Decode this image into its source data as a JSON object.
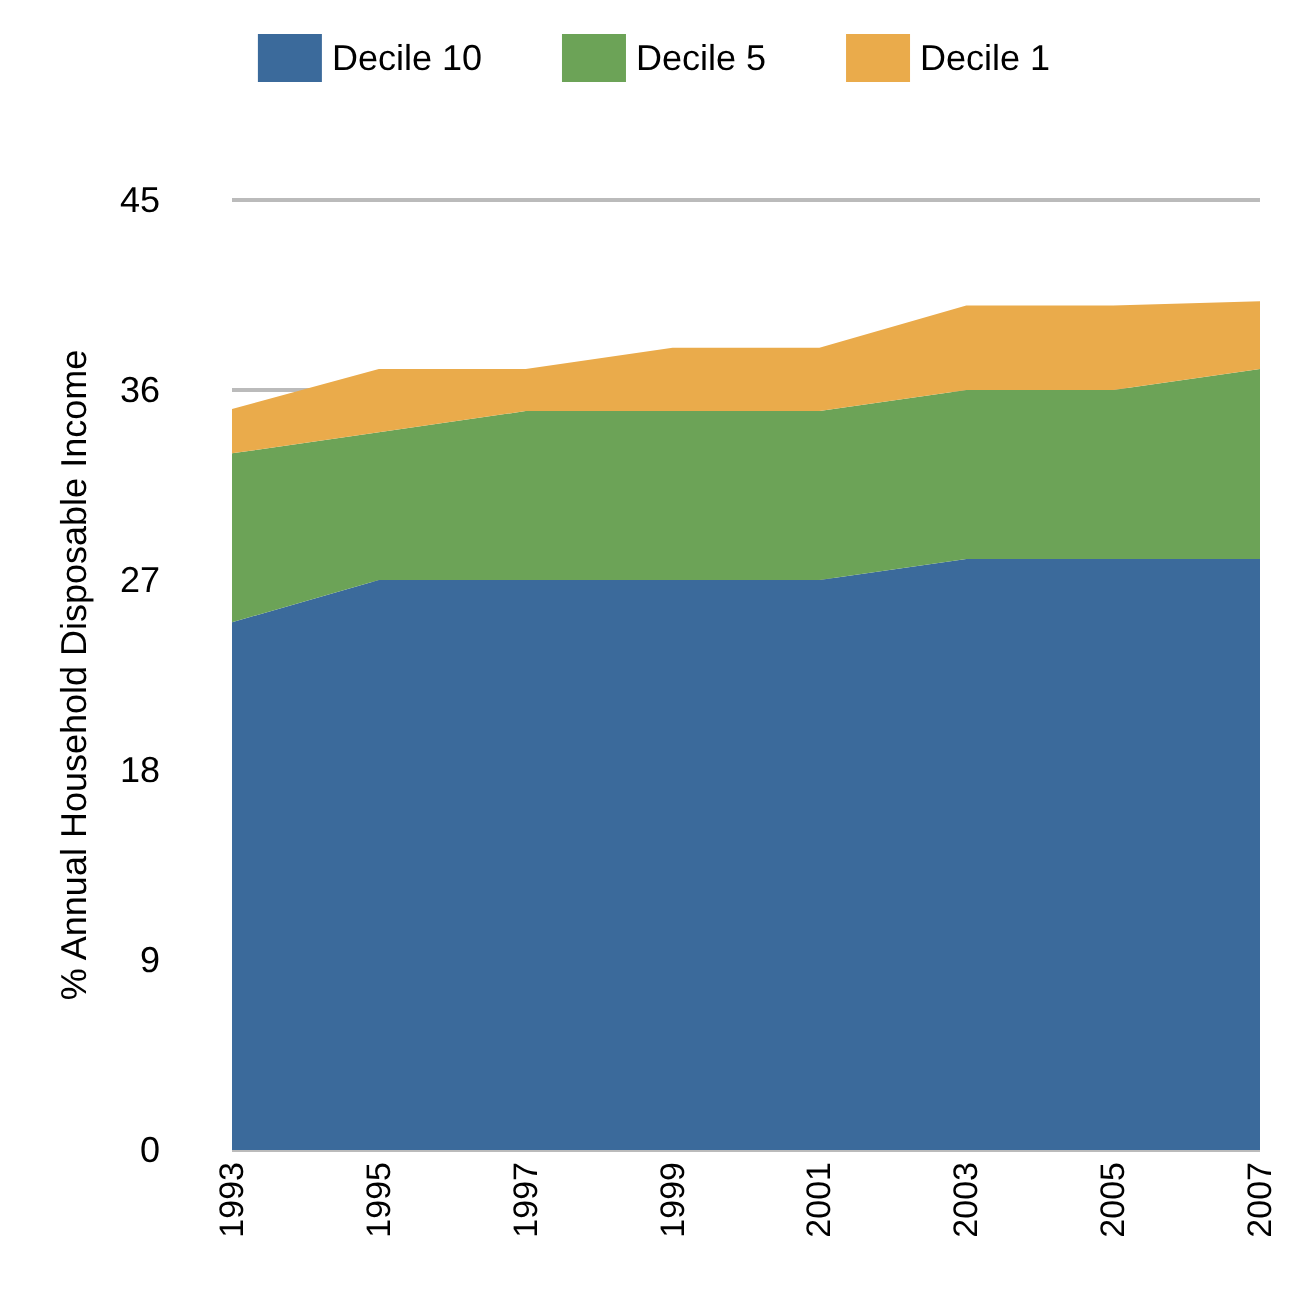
{
  "chart_data": {
    "type": "area",
    "ylabel": "% Annual Household Disposable Income",
    "categories": [
      "1993",
      "1995",
      "1997",
      "1999",
      "2001",
      "2003",
      "2005",
      "2007"
    ],
    "stacked": true,
    "series": [
      {
        "name": "Decile 10",
        "color": "#3b6a9b",
        "values": [
          25,
          27,
          27,
          27,
          27,
          28,
          28,
          28
        ]
      },
      {
        "name": "Decile 5",
        "color": "#6ca357",
        "values": [
          8,
          7,
          8,
          8,
          8,
          8,
          8,
          9
        ]
      },
      {
        "name": "Decile 1",
        "color": "#eaab4b",
        "values": [
          2.1,
          3,
          2,
          3,
          3,
          4,
          4,
          3.2
        ]
      }
    ],
    "ylim": [
      0,
      45
    ],
    "yticks": [
      0,
      9,
      18,
      27,
      36,
      45
    ],
    "grid": "y",
    "legend": "top"
  }
}
